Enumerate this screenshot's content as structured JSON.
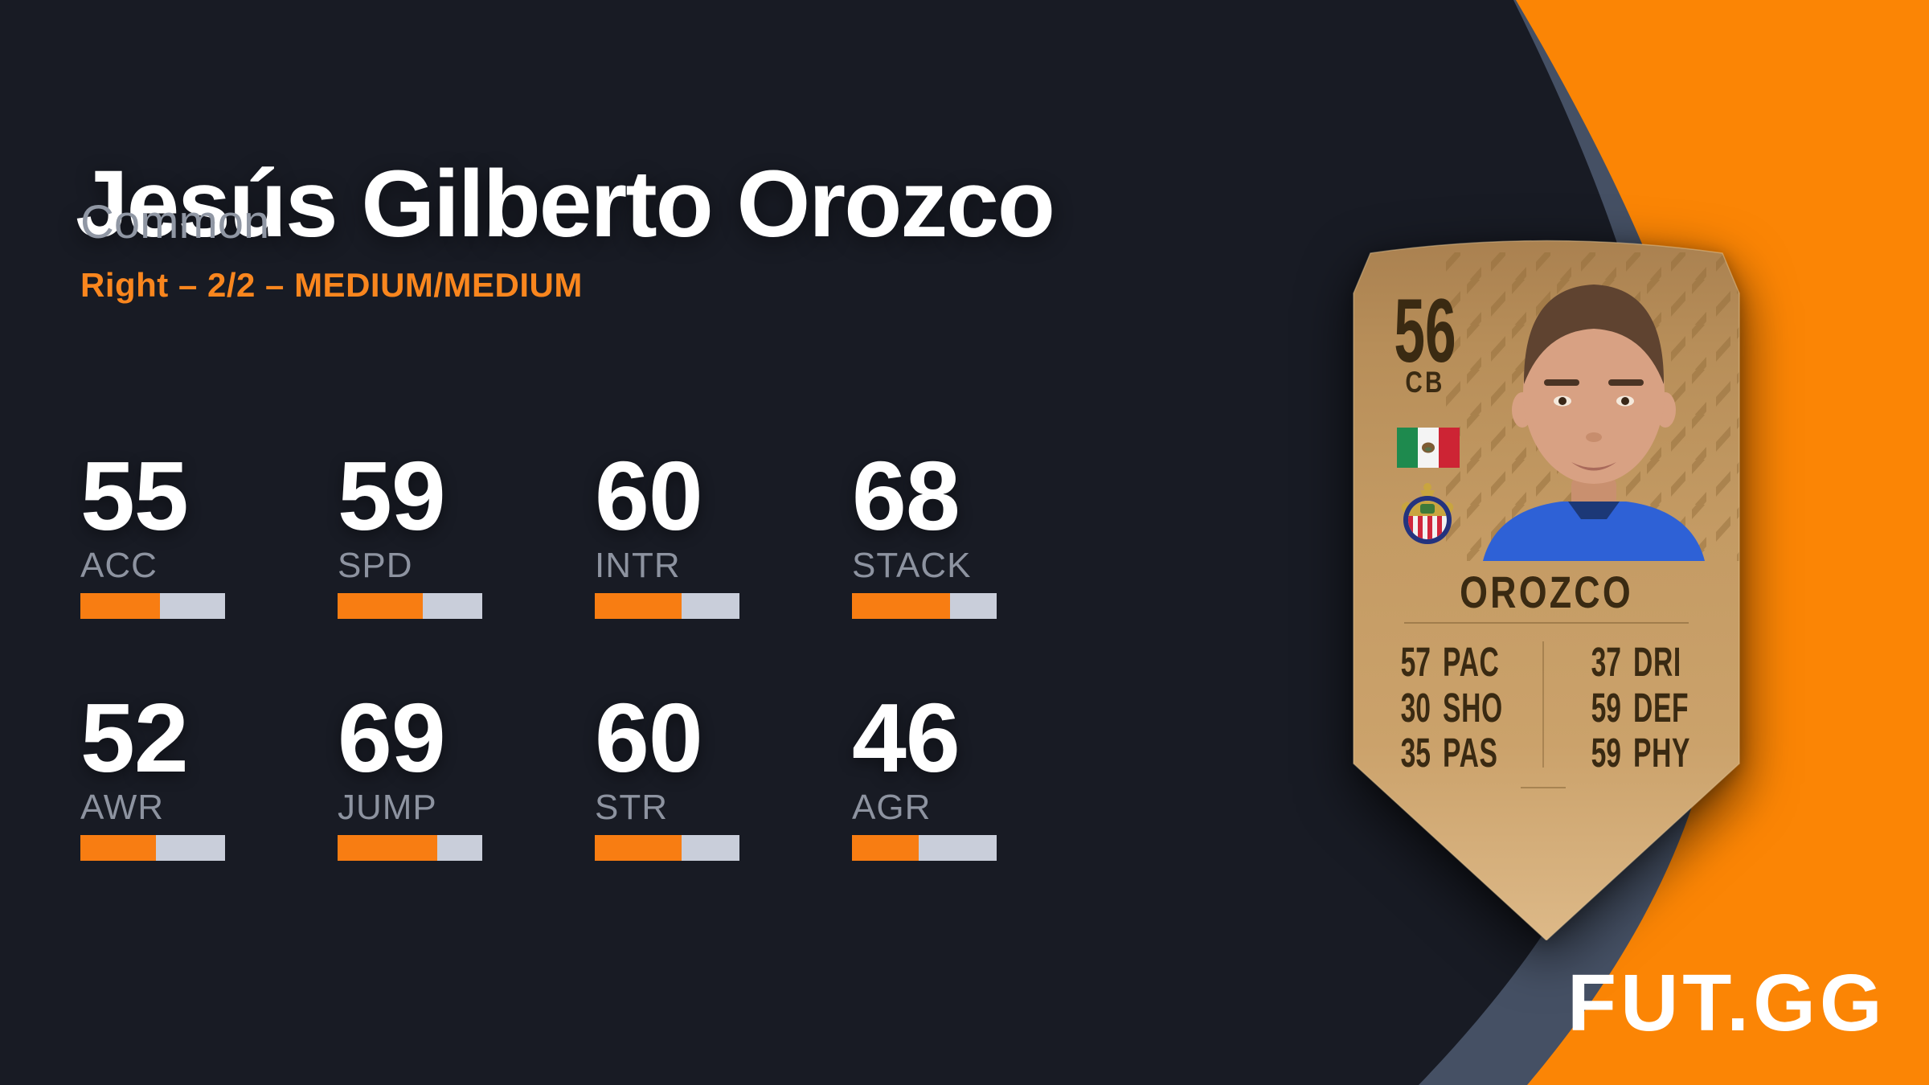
{
  "header": {
    "title": "Jesús Gilberto Orozco",
    "rarity": "Common",
    "meta": "Right – 2/2 – MEDIUM/MEDIUM"
  },
  "attributes": [
    {
      "label": "ACC",
      "value": 55
    },
    {
      "label": "SPD",
      "value": 59
    },
    {
      "label": "INTR",
      "value": 60
    },
    {
      "label": "STACK",
      "value": 68
    },
    {
      "label": "AWR",
      "value": 52
    },
    {
      "label": "JUMP",
      "value": 69
    },
    {
      "label": "STR",
      "value": 60
    },
    {
      "label": "AGR",
      "value": 46
    }
  ],
  "card": {
    "rating": "56",
    "position": "CB",
    "name": "OROZCO",
    "nation_icon": "mexico-flag",
    "club_icon": "chivas-guadalajara-badge",
    "stats_left": [
      {
        "value": "57",
        "label": "PAC"
      },
      {
        "value": "30",
        "label": "SHO"
      },
      {
        "value": "35",
        "label": "PAS"
      }
    ],
    "stats_right": [
      {
        "value": "37",
        "label": "DRI"
      },
      {
        "value": "59",
        "label": "DEF"
      },
      {
        "value": "59",
        "label": "PHY"
      }
    ]
  },
  "brand": {
    "logo": "FUT.GG"
  },
  "colors": {
    "background": "#181B24",
    "curve_band": "#455064",
    "orange_panel": "#FB8505",
    "accent_text": "#F9861E",
    "bar_fill": "#F87D12",
    "bar_track": "#C9CEDA",
    "attribute_label": "#8D93A0",
    "rarity_text": "#9097A4",
    "card_gold": "#C69D67",
    "card_text": "#3A2A12",
    "logo_text": "#FFFFFF"
  }
}
